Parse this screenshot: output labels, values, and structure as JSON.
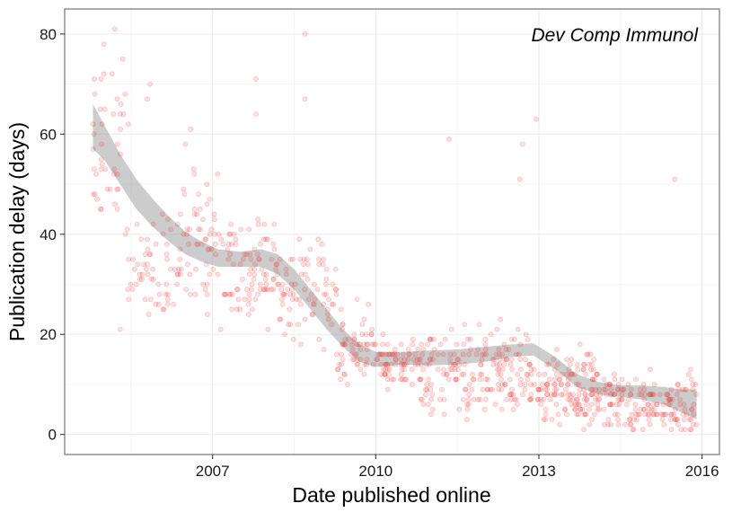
{
  "chart_data": {
    "type": "scatter",
    "title": "",
    "annotation": "Dev Comp Immunol",
    "xlabel": "Date published online",
    "ylabel": "Publication delay (days)",
    "x_axis_type": "year",
    "xlim": [
      2004.28,
      2016.32
    ],
    "ylim": [
      -4,
      85
    ],
    "x_ticks": [
      {
        "value": 2007,
        "label": "2007"
      },
      {
        "value": 2010,
        "label": "2010"
      },
      {
        "value": 2013,
        "label": "2013"
      },
      {
        "value": 2016,
        "label": "2016"
      }
    ],
    "y_ticks": [
      {
        "value": 0,
        "label": "0"
      },
      {
        "value": 20,
        "label": "20"
      },
      {
        "value": 40,
        "label": "40"
      },
      {
        "value": 60,
        "label": "60"
      },
      {
        "value": 80,
        "label": "80"
      }
    ],
    "grid": true,
    "legend": "none",
    "point_color": "#e8262b",
    "point_alpha": 0.15,
    "smooth_color": "#999999",
    "smooth_band": [
      {
        "x": 2004.8,
        "upper": 66,
        "lower": 57
      },
      {
        "x": 2005.0,
        "upper": 62,
        "lower": 55
      },
      {
        "x": 2005.3,
        "upper": 56,
        "lower": 50
      },
      {
        "x": 2005.6,
        "upper": 51,
        "lower": 45
      },
      {
        "x": 2005.9,
        "upper": 47,
        "lower": 41.5
      },
      {
        "x": 2006.2,
        "upper": 43.5,
        "lower": 38.5
      },
      {
        "x": 2006.5,
        "upper": 40.5,
        "lower": 36
      },
      {
        "x": 2006.8,
        "upper": 38.5,
        "lower": 34.5
      },
      {
        "x": 2007.1,
        "upper": 37,
        "lower": 33.5
      },
      {
        "x": 2007.5,
        "upper": 36.5,
        "lower": 33.5
      },
      {
        "x": 2007.9,
        "upper": 37,
        "lower": 33.5
      },
      {
        "x": 2008.2,
        "upper": 36,
        "lower": 32
      },
      {
        "x": 2008.5,
        "upper": 33,
        "lower": 29
      },
      {
        "x": 2008.8,
        "upper": 29,
        "lower": 25
      },
      {
        "x": 2009.1,
        "upper": 25,
        "lower": 21
      },
      {
        "x": 2009.4,
        "upper": 21,
        "lower": 17.5
      },
      {
        "x": 2009.7,
        "upper": 18,
        "lower": 14.5
      },
      {
        "x": 2010.0,
        "upper": 16.5,
        "lower": 13.5
      },
      {
        "x": 2010.5,
        "upper": 16.5,
        "lower": 14
      },
      {
        "x": 2011.0,
        "upper": 16.8,
        "lower": 13.8
      },
      {
        "x": 2011.5,
        "upper": 17,
        "lower": 14
      },
      {
        "x": 2012.0,
        "upper": 17.5,
        "lower": 14.5
      },
      {
        "x": 2012.5,
        "upper": 18,
        "lower": 15.5
      },
      {
        "x": 2012.9,
        "upper": 18.2,
        "lower": 15.8
      },
      {
        "x": 2013.3,
        "upper": 15.5,
        "lower": 13
      },
      {
        "x": 2013.7,
        "upper": 12,
        "lower": 9.5
      },
      {
        "x": 2014.1,
        "upper": 10.5,
        "lower": 8
      },
      {
        "x": 2014.5,
        "upper": 9.8,
        "lower": 7.5
      },
      {
        "x": 2014.9,
        "upper": 9.8,
        "lower": 7
      },
      {
        "x": 2015.3,
        "upper": 9.5,
        "lower": 6
      },
      {
        "x": 2015.6,
        "upper": 9,
        "lower": 4.5
      },
      {
        "x": 2015.9,
        "upper": 9,
        "lower": 3
      }
    ],
    "point_density": [
      {
        "x_range": [
          2004.8,
          2005.4
        ],
        "y_center": 56,
        "y_spread": 14,
        "count": 40
      },
      {
        "x_range": [
          2005.4,
          2006.4
        ],
        "y_center": 33,
        "y_spread": 10,
        "count": 60
      },
      {
        "x_range": [
          2006.4,
          2007.1
        ],
        "y_center": 38,
        "y_spread": 14,
        "count": 55
      },
      {
        "x_range": [
          2007.1,
          2008.2
        ],
        "y_center": 33,
        "y_spread": 9,
        "count": 90
      },
      {
        "x_range": [
          2008.2,
          2009.3
        ],
        "y_center": 28,
        "y_spread": 9,
        "count": 80
      },
      {
        "x_range": [
          2009.3,
          2010.0
        ],
        "y_center": 18,
        "y_spread": 7,
        "count": 60
      },
      {
        "x_range": [
          2010.0,
          2010.8
        ],
        "y_center": 14,
        "y_spread": 4,
        "count": 70
      },
      {
        "x_range": [
          2010.8,
          2012.9
        ],
        "y_center": 12,
        "y_spread": 8,
        "count": 200
      },
      {
        "x_range": [
          2012.9,
          2014.2
        ],
        "y_center": 9,
        "y_spread": 6,
        "count": 150
      },
      {
        "x_range": [
          2014.2,
          2015.9
        ],
        "y_center": 6,
        "y_spread": 5,
        "count": 160
      }
    ],
    "notable_points": [
      {
        "x": 2005.2,
        "y": 81
      },
      {
        "x": 2005.0,
        "y": 78
      },
      {
        "x": 2005.35,
        "y": 75
      },
      {
        "x": 2004.95,
        "y": 71
      },
      {
        "x": 2005.15,
        "y": 72
      },
      {
        "x": 2005.85,
        "y": 70
      },
      {
        "x": 2005.8,
        "y": 67
      },
      {
        "x": 2008.7,
        "y": 80
      },
      {
        "x": 2007.8,
        "y": 71
      },
      {
        "x": 2012.95,
        "y": 63
      },
      {
        "x": 2011.35,
        "y": 59
      },
      {
        "x": 2012.7,
        "y": 58
      },
      {
        "x": 2015.5,
        "y": 51
      },
      {
        "x": 2012.65,
        "y": 51
      },
      {
        "x": 2005.3,
        "y": 21
      },
      {
        "x": 2005.45,
        "y": 62
      },
      {
        "x": 2006.6,
        "y": 61
      },
      {
        "x": 2006.5,
        "y": 58
      },
      {
        "x": 2008.7,
        "y": 67
      },
      {
        "x": 2007.8,
        "y": 64
      }
    ]
  }
}
